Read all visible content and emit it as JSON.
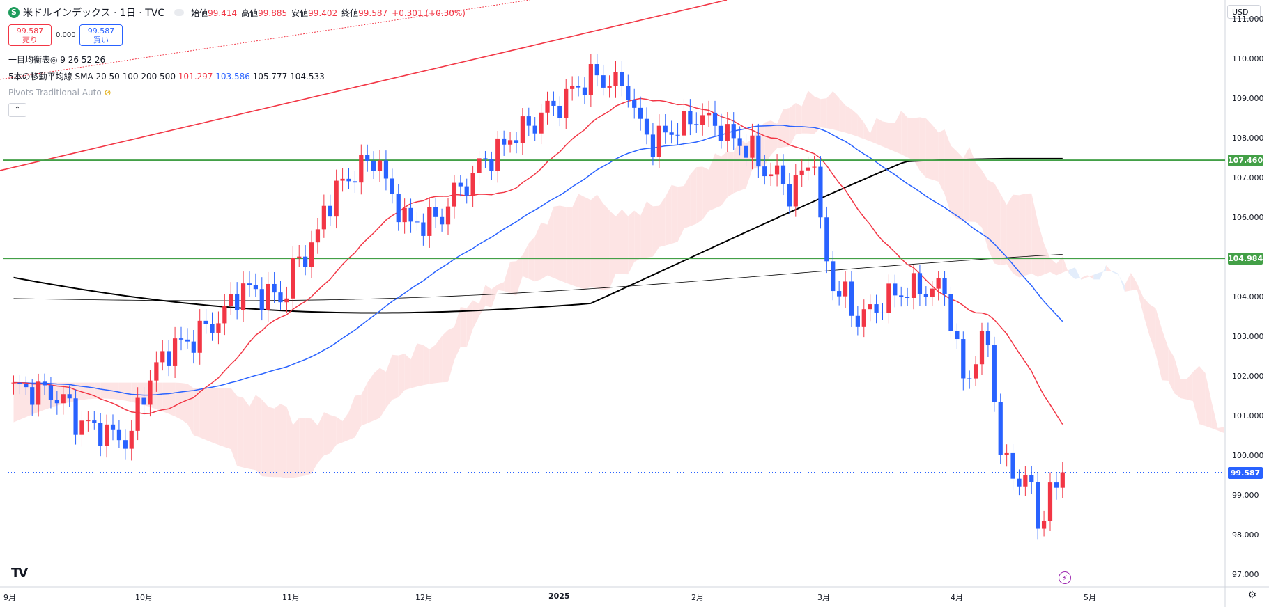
{
  "header": {
    "symbol_icon": "S",
    "title": "米ドルインデックス · 1日 · TVC",
    "ohlc": [
      {
        "label": "始値",
        "value": "99.414"
      },
      {
        "label": "高値",
        "value": "99.885"
      },
      {
        "label": "安値",
        "value": "99.402"
      },
      {
        "label": "終値",
        "value": "99.587"
      },
      {
        "label": "",
        "value": "+0.301 (+0.30%)"
      }
    ]
  },
  "trade": {
    "sell_price": "99.587",
    "sell_label": "売り",
    "spread": "0.000",
    "buy_price": "99.587",
    "buy_label": "買い"
  },
  "indicators": {
    "ichimoku": "一目均衡表◎ 9 26 52 26",
    "sma_label": "5本の移動平均線 SMA 20 50 100 200 500",
    "sma_values": [
      {
        "value": "101.297",
        "color": "#f23645"
      },
      {
        "value": "103.586",
        "color": "#2962ff"
      },
      {
        "value": "105.777",
        "color": "#131722"
      },
      {
        "value": "104.533",
        "color": "#131722"
      }
    ],
    "pivots": "Pivots Traditional Auto"
  },
  "currency_button": "USD",
  "colors": {
    "up": "#f23645",
    "down": "#2962ff",
    "sma20": "#f23645",
    "sma50": "#2962ff",
    "sma100": "#000000",
    "sma200": "#000000",
    "hline": "#43a047",
    "cloud_bull": "#fde4e4",
    "cloud_bear": "#e3edfb",
    "trend": "#f23645"
  },
  "chart_data": {
    "type": "candlestick",
    "ylim": [
      96.7,
      111.5
    ],
    "y_ticks": [
      "97.000",
      "98.000",
      "99.000",
      "100.000",
      "101.000",
      "102.000",
      "103.000",
      "104.000",
      "105.000",
      "106.000",
      "107.000",
      "108.000",
      "109.000",
      "110.000",
      "111.000"
    ],
    "x_ticks": [
      "9月",
      "10月",
      "11月",
      "12月",
      "2025",
      "2月",
      "3月",
      "4月",
      "5月"
    ],
    "horizontal_lines": [
      {
        "value": 107.46,
        "label": "107.460"
      },
      {
        "value": 104.984,
        "label": "104.984"
      }
    ],
    "last_price": {
      "value": 99.587,
      "label": "99.587"
    },
    "candles_summary": [
      {
        "date": "2024-09",
        "open": 101.7,
        "close": 100.8
      },
      {
        "date": "2024-10",
        "open": 100.8,
        "close": 104.0
      },
      {
        "date": "2024-11",
        "open": 104.0,
        "close": 105.8
      },
      {
        "date": "2024-12",
        "open": 105.8,
        "close": 108.5
      },
      {
        "date": "2025-01",
        "open": 108.5,
        "close": 108.4
      },
      {
        "date": "2025-02",
        "open": 108.4,
        "close": 107.6
      },
      {
        "date": "2025-03",
        "open": 107.6,
        "close": 104.2
      },
      {
        "date": "2025-04",
        "open": 104.2,
        "close": 99.587
      }
    ],
    "sma20_end": 101.297,
    "sma50_end": 103.586,
    "sma100_end": 105.777,
    "sma200_end": 104.533
  }
}
